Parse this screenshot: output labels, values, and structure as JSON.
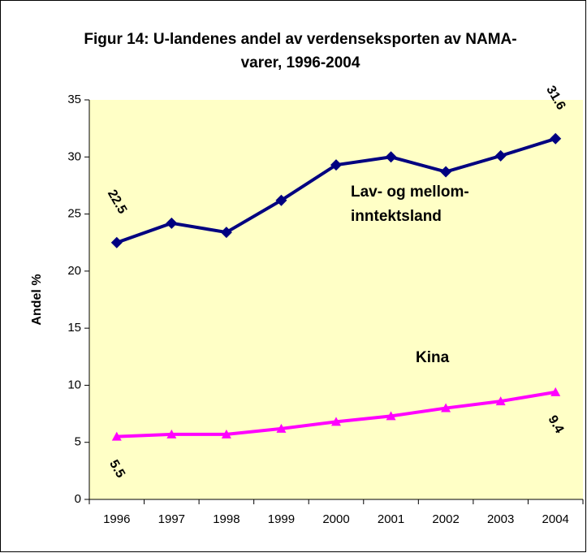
{
  "chart_data": {
    "type": "line",
    "title": "Figur 14: U-landenes andel av verdenseksporten av NAMA-varer, 1996-2004",
    "y_label": "Andel %",
    "categories": [
      "1996",
      "1997",
      "1998",
      "1999",
      "2000",
      "2001",
      "2002",
      "2003",
      "2004"
    ],
    "series": [
      {
        "name": "Lav- og mellom-inntektsland",
        "color": "#000080",
        "values": [
          22.5,
          24.2,
          23.4,
          26.2,
          29.3,
          30.0,
          28.7,
          30.1,
          31.6
        ]
      },
      {
        "name": "Kina",
        "color": "#ff00ff",
        "values": [
          5.5,
          5.7,
          5.7,
          6.2,
          6.8,
          7.3,
          8.0,
          8.6,
          9.4
        ]
      }
    ],
    "ylim": [
      0,
      35
    ],
    "yticks": [
      0,
      5,
      10,
      15,
      20,
      25,
      30,
      35
    ]
  }
}
